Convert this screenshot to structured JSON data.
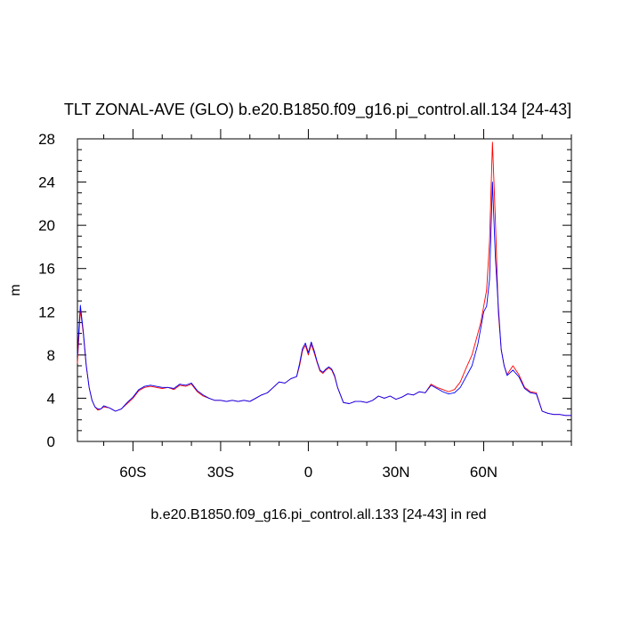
{
  "chart_data": {
    "type": "line",
    "title": "TLT ZONAL-AVE (GLO) b.e20.B1850.f09_g16.pi_control.all.134 [24-43]",
    "subtitle": "b.e20.B1850.f09_g16.pi_control.all.133 [24-43] in red",
    "xlabel": "",
    "ylabel": "m",
    "xlim": [
      -79,
      90
    ],
    "ylim": [
      0,
      28
    ],
    "x_ticks": [
      -60,
      -30,
      0,
      30,
      60
    ],
    "x_tick_labels": [
      "60S",
      "30S",
      "0",
      "30N",
      "60N"
    ],
    "y_ticks": [
      0,
      4,
      8,
      12,
      16,
      20,
      24,
      28
    ],
    "y_tick_labels": [
      "0",
      "4",
      "8",
      "12",
      "16",
      "20",
      "24",
      "28"
    ],
    "grid": false,
    "legend": "none",
    "series": [
      {
        "color": "#ff0000",
        "x": [
          -79,
          -78,
          -77,
          -76,
          -75,
          -74,
          -73,
          -72,
          -71,
          -70,
          -68,
          -66,
          -64,
          -62,
          -60,
          -58,
          -56,
          -54,
          -52,
          -50,
          -48,
          -46,
          -44,
          -42,
          -40,
          -38,
          -36,
          -34,
          -32,
          -30,
          -28,
          -26,
          -24,
          -22,
          -20,
          -18,
          -16,
          -14,
          -12,
          -10,
          -8,
          -6,
          -4,
          -3,
          -2,
          -1,
          0,
          1,
          2,
          3,
          4,
          5,
          6,
          7,
          8,
          9,
          10,
          12,
          14,
          16,
          18,
          20,
          22,
          24,
          26,
          28,
          30,
          32,
          34,
          36,
          38,
          40,
          42,
          44,
          46,
          48,
          50,
          52,
          54,
          56,
          57,
          58,
          59,
          60,
          61,
          62,
          63,
          64,
          65,
          66,
          67,
          68,
          70,
          72,
          74,
          76,
          78,
          80,
          82,
          84,
          86,
          88,
          90
        ],
        "y": [
          7.2,
          12.2,
          10.0,
          7.0,
          5.0,
          3.8,
          3.2,
          2.9,
          3.0,
          3.2,
          3.1,
          2.8,
          3.0,
          3.5,
          4.0,
          4.7,
          5.0,
          5.1,
          5.0,
          4.9,
          5.0,
          4.8,
          5.2,
          5.1,
          5.3,
          4.6,
          4.2,
          4.0,
          3.8,
          3.8,
          3.7,
          3.8,
          3.7,
          3.8,
          3.7,
          4.0,
          4.3,
          4.5,
          5.0,
          5.5,
          5.4,
          5.8,
          6.0,
          7.0,
          8.4,
          8.9,
          8.0,
          9.0,
          8.2,
          7.3,
          6.5,
          6.3,
          6.6,
          6.8,
          6.6,
          6.0,
          5.0,
          3.6,
          3.5,
          3.7,
          3.7,
          3.6,
          3.8,
          4.2,
          4.0,
          4.2,
          3.9,
          4.1,
          4.4,
          4.3,
          4.6,
          4.5,
          5.3,
          5.0,
          4.8,
          4.6,
          4.8,
          5.5,
          6.8,
          8.0,
          9.0,
          10.0,
          11.0,
          12.5,
          14.0,
          18.5,
          27.7,
          20.5,
          12.0,
          8.5,
          7.0,
          6.2,
          7.0,
          6.2,
          5.0,
          4.6,
          4.5,
          2.8,
          2.6,
          2.5,
          2.5,
          2.4,
          2.4
        ]
      },
      {
        "color": "#0000ff",
        "x": [
          -79,
          -78,
          -77,
          -76,
          -75,
          -74,
          -73,
          -72,
          -71,
          -70,
          -68,
          -66,
          -64,
          -62,
          -60,
          -58,
          -56,
          -54,
          -52,
          -50,
          -48,
          -46,
          -44,
          -42,
          -40,
          -38,
          -36,
          -34,
          -32,
          -30,
          -28,
          -26,
          -24,
          -22,
          -20,
          -18,
          -16,
          -14,
          -12,
          -10,
          -8,
          -6,
          -4,
          -3,
          -2,
          -1,
          0,
          1,
          2,
          3,
          4,
          5,
          6,
          7,
          8,
          9,
          10,
          12,
          14,
          16,
          18,
          20,
          22,
          24,
          26,
          28,
          30,
          32,
          34,
          36,
          38,
          40,
          42,
          44,
          46,
          48,
          50,
          52,
          54,
          56,
          57,
          58,
          59,
          60,
          61,
          62,
          63,
          64,
          65,
          66,
          67,
          68,
          70,
          72,
          74,
          76,
          78,
          80,
          82,
          84,
          86,
          88,
          90
        ],
        "y": [
          8.0,
          12.6,
          10.2,
          7.1,
          5.0,
          3.8,
          3.2,
          3.0,
          3.0,
          3.3,
          3.1,
          2.8,
          3.0,
          3.6,
          4.1,
          4.8,
          5.1,
          5.2,
          5.1,
          5.0,
          5.0,
          4.9,
          5.3,
          5.2,
          5.4,
          4.7,
          4.3,
          4.0,
          3.8,
          3.8,
          3.7,
          3.8,
          3.7,
          3.8,
          3.7,
          4.0,
          4.3,
          4.5,
          5.0,
          5.5,
          5.4,
          5.8,
          6.0,
          7.2,
          8.6,
          9.1,
          8.2,
          9.2,
          8.4,
          7.4,
          6.6,
          6.4,
          6.7,
          6.9,
          6.7,
          6.1,
          5.0,
          3.6,
          3.5,
          3.7,
          3.7,
          3.6,
          3.8,
          4.2,
          4.0,
          4.2,
          3.9,
          4.1,
          4.4,
          4.3,
          4.6,
          4.5,
          5.2,
          4.9,
          4.6,
          4.4,
          4.5,
          5.0,
          6.0,
          7.0,
          8.0,
          9.0,
          10.5,
          12.0,
          12.5,
          15.0,
          24.0,
          17.0,
          12.5,
          8.5,
          7.0,
          6.1,
          6.6,
          6.0,
          4.9,
          4.5,
          4.4,
          2.8,
          2.6,
          2.5,
          2.5,
          2.4,
          2.4
        ]
      }
    ]
  }
}
